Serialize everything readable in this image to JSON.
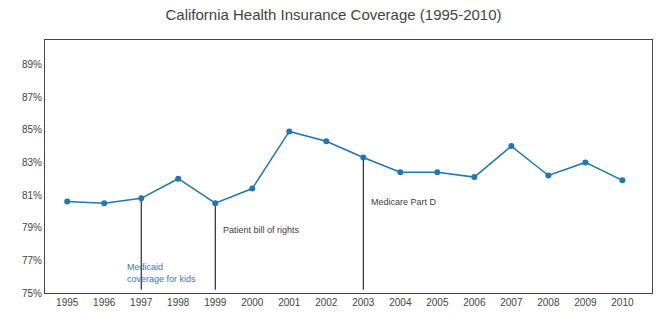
{
  "chart_data": {
    "type": "line",
    "title": "California Health Insurance Coverage (1995-2010)",
    "x": [
      1995,
      1996,
      1997,
      1998,
      1999,
      2000,
      2001,
      2002,
      2003,
      2004,
      2005,
      2006,
      2007,
      2008,
      2009,
      2010
    ],
    "values": [
      0.806,
      0.805,
      0.808,
      0.82,
      0.805,
      0.814,
      0.849,
      0.843,
      0.833,
      0.824,
      0.824,
      0.821,
      0.84,
      0.822,
      0.83,
      0.819
    ],
    "marker": "circle",
    "xlim": [
      1994.4,
      2010.8
    ],
    "xticks": [
      1995,
      1996,
      1997,
      1998,
      1999,
      2000,
      2001,
      2002,
      2003,
      2004,
      2005,
      2006,
      2007,
      2008,
      2009,
      2010
    ],
    "ylim": [
      0.75,
      0.905
    ],
    "yticks": [
      {
        "value": 0.75,
        "label": "75%"
      },
      {
        "value": 0.77,
        "label": "77%"
      },
      {
        "value": 0.79,
        "label": "79%"
      },
      {
        "value": 0.81,
        "label": "81%"
      },
      {
        "value": 0.83,
        "label": "83%"
      },
      {
        "value": 0.85,
        "label": "85%"
      },
      {
        "value": 0.87,
        "label": "87%"
      },
      {
        "value": 0.89,
        "label": "89%"
      }
    ],
    "grid": false,
    "annotations": [
      {
        "label": "Medicaid\ncoverage for kids",
        "x": 1997,
        "line_y_top": 0.808,
        "line_y_bottom": 0.752,
        "text_x": 1996.55,
        "text_y": 0.77,
        "color": "#4472C4"
      },
      {
        "label": "Patient bill of rights",
        "x": 1999,
        "line_y_top": 0.805,
        "line_y_bottom": 0.752,
        "text_x": 1999.15,
        "text_y": 0.793,
        "color": "#404040"
      },
      {
        "label": "Medicare Part D",
        "x": 2003,
        "line_y_top": 0.833,
        "line_y_bottom": 0.752,
        "text_x": 2003.15,
        "text_y": 0.81,
        "color": "#404040"
      }
    ]
  }
}
